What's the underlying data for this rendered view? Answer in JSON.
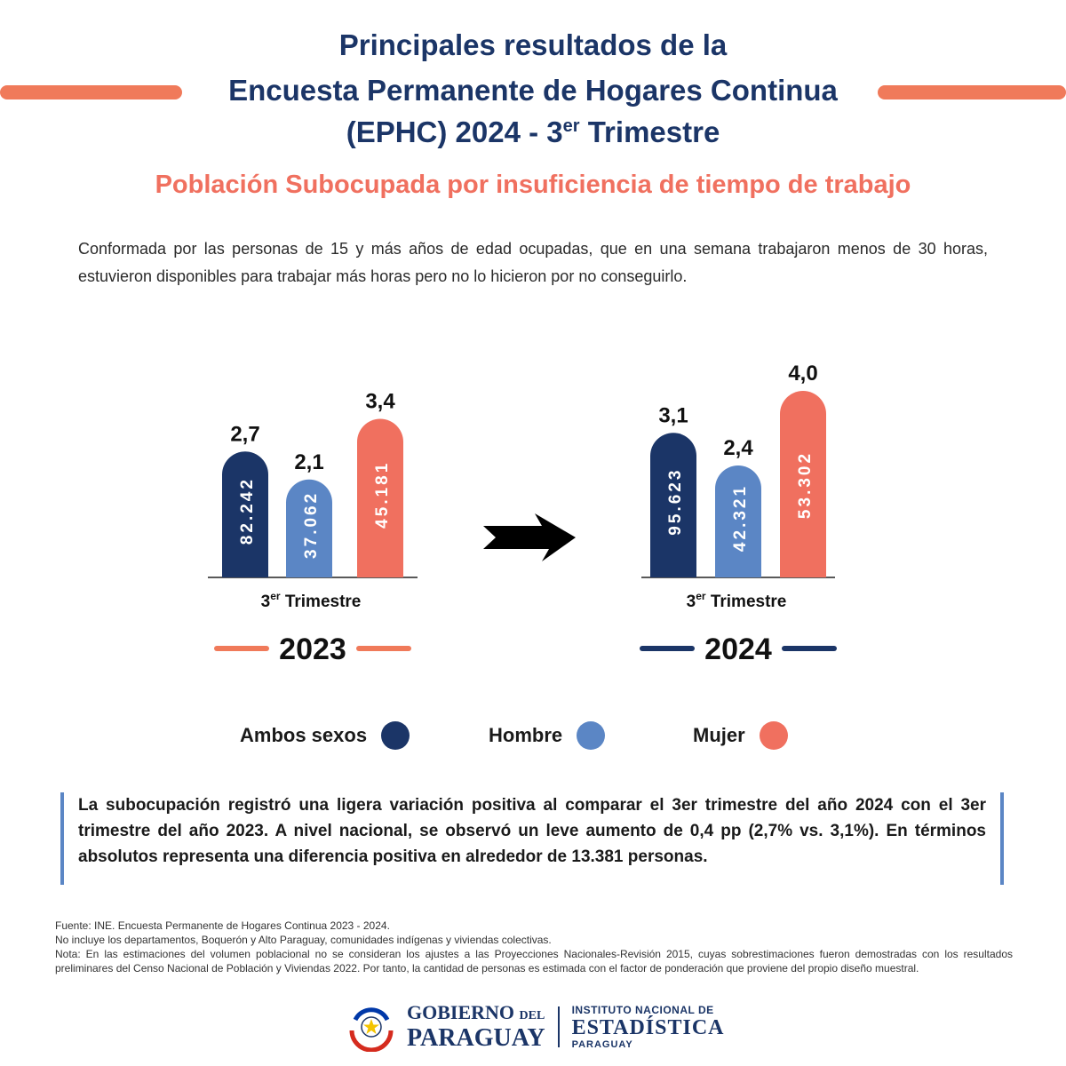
{
  "header": {
    "title_line1": "Principales resultados de la",
    "title_line2": "Encuesta Permanente de Hogares Continua",
    "title_line3_main": "(EPHC) 2024 - 3",
    "title_line3_sup": "er",
    "title_line3_end": " Trimestre",
    "subtitle": "Población Subocupada por insuficiencia de tiempo de trabajo",
    "description": "Conformada por las personas de 15 y más años de edad ocupadas, que en una semana trabajaron menos de 30 horas, estuvieron disponibles para trabajar más horas pero no lo hicieron por no conseguirlo."
  },
  "colors": {
    "navy": "#1b3567",
    "coral": "#f0705f",
    "coral_line": "#f07a5a",
    "light_blue": "#5b86c5",
    "title": "#1b3567"
  },
  "chart_data": [
    {
      "type": "bar",
      "year": "2023",
      "period": "3er Trimestre",
      "period_main": "3",
      "period_sup": "er",
      "period_rest": " Trimestre",
      "series": [
        {
          "name": "Ambos sexos",
          "percent": 2.7,
          "percent_label": "2,7",
          "persons": 82242,
          "persons_label": "82.242"
        },
        {
          "name": "Hombre",
          "percent": 2.1,
          "percent_label": "2,1",
          "persons": 37062,
          "persons_label": "37.062"
        },
        {
          "name": "Mujer",
          "percent": 3.4,
          "percent_label": "3,4",
          "persons": 45181,
          "persons_label": "45.181"
        }
      ]
    },
    {
      "type": "bar",
      "year": "2024",
      "period": "3er Trimestre",
      "period_main": "3",
      "period_sup": "er",
      "period_rest": " Trimestre",
      "series": [
        {
          "name": "Ambos sexos",
          "percent": 3.1,
          "percent_label": "3,1",
          "persons": 95623,
          "persons_label": "95.623"
        },
        {
          "name": "Hombre",
          "percent": 2.4,
          "percent_label": "2,4",
          "persons": 42321,
          "persons_label": "42.321"
        },
        {
          "name": "Mujer",
          "percent": 4.0,
          "percent_label": "4,0",
          "persons": 53302,
          "persons_label": "53.302"
        }
      ]
    }
  ],
  "legend": [
    {
      "label": "Ambos sexos",
      "color": "#1b3567"
    },
    {
      "label": "Hombre",
      "color": "#5b86c5"
    },
    {
      "label": "Mujer",
      "color": "#f0705f"
    }
  ],
  "note": "La subocupación registró una ligera variación positiva al comparar el 3er trimestre del año 2024 con el 3er trimestre del año 2023. A nivel nacional, se observó un leve aumento de 0,4 pp (2,7% vs. 3,1%). En términos absolutos representa una diferencia positiva en alrededor de 13.381 personas.",
  "footer": {
    "source": "Fuente: INE. Encuesta Permanente de Hogares Continua 2023 - 2024.",
    "exclusion": "No incluye los departamentos, Boquerón y Alto Paraguay, comunidades indígenas y viviendas colectivas.",
    "note": "Nota: En las estimaciones del volumen poblacional no se consideran los ajustes a las Proyecciones Nacionales-Revisión 2015, cuyas sobrestimaciones fueron demostradas con los resultados preliminares del Censo Nacional de Población y Viviendas 2022. Por tanto, la cantidad de personas es estimada con el factor de ponderación que proviene del propio diseño muestral."
  },
  "logos": {
    "gov_line1": "GOBIERNO",
    "gov_del": "DEL",
    "gov_line2": "PARAGUAY",
    "ine_line1": "INSTITUTO NACIONAL DE",
    "ine_line2": "ESTADÍSTICA",
    "ine_line3": "PARAGUAY"
  }
}
